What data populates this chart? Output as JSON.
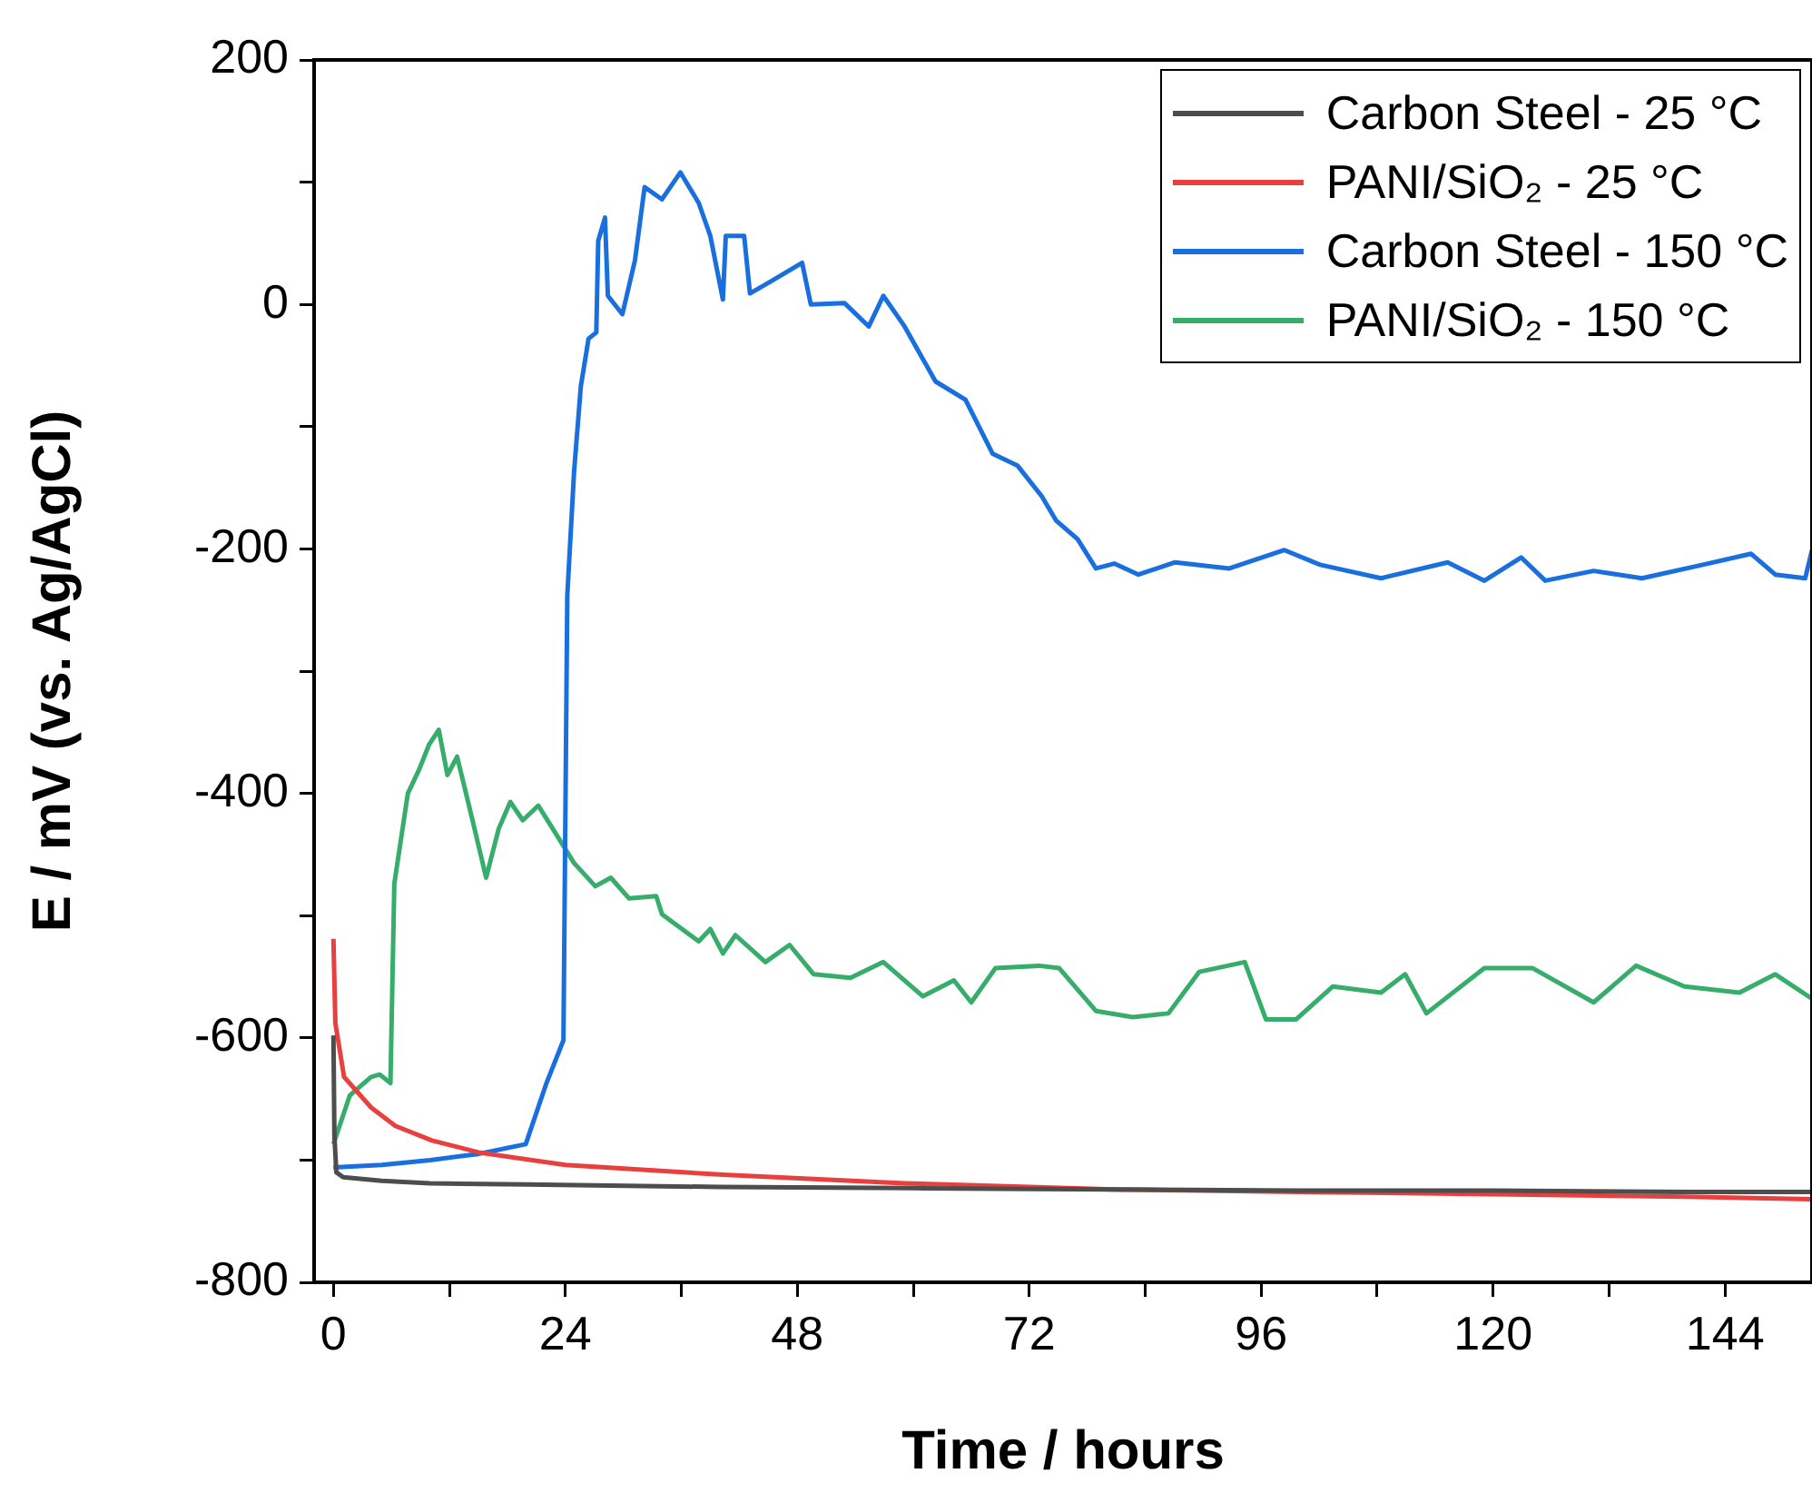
{
  "chart_data": {
    "type": "line",
    "xlabel": "Time / hours",
    "ylabel": "E / mV (vs. Ag/AgCl)",
    "xlim": [
      -2,
      153
    ],
    "ylim": [
      -800,
      200
    ],
    "xticks": [
      0,
      {
        "value": 12,
        "label": null
      },
      24,
      {
        "value": 36,
        "label": null
      },
      48,
      {
        "value": 60,
        "label": null
      },
      72,
      {
        "value": 84,
        "label": null
      },
      96,
      {
        "value": 108,
        "label": null
      },
      120,
      {
        "value": 132,
        "label": null
      },
      144
    ],
    "yticks": [
      -800,
      {
        "value": -700,
        "label": null
      },
      -600,
      {
        "value": -500,
        "label": null
      },
      -400,
      {
        "value": -300,
        "label": null
      },
      -200,
      {
        "value": -100,
        "label": null
      },
      0,
      {
        "value": 100,
        "label": null
      },
      200
    ],
    "grid": false,
    "legend": "top right",
    "marker": "none",
    "line_style": "solid",
    "series": [
      {
        "name": "Carbon Steel - 25 °C",
        "color": "#4d4d4d",
        "x": [
          0,
          0.1,
          0.3,
          1,
          5,
          10,
          20,
          40,
          60,
          80,
          100,
          120,
          140,
          153
        ],
        "values": [
          -598,
          -680,
          -710,
          -714,
          -717,
          -719,
          -720,
          -722,
          -723,
          -724,
          -725,
          -725,
          -726,
          -726
        ]
      },
      {
        "name": "PANI/SiO₂ - 25 °C",
        "color": "#e8403f",
        "x": [
          0,
          0.2,
          1.1,
          3.9,
          6.4,
          10.2,
          15.2,
          24,
          40.3,
          59.1,
          80.8,
          100,
          120,
          140,
          153
        ],
        "values": [
          -519,
          -588,
          -632,
          -657,
          -672,
          -684,
          -694,
          -704,
          -712,
          -719,
          -724,
          -726,
          -728,
          -730,
          -732
        ]
      },
      {
        "name": "Carbon Steel - 150 °C",
        "color": "#1a6fdf",
        "x": [
          0,
          5,
          10,
          15,
          19.9,
          22,
          23.8,
          24.2,
          24.9,
          25.6,
          26.4,
          27.2,
          27.4,
          28.1,
          28.4,
          29.9,
          31.2,
          32.2,
          34,
          35.9,
          37.8,
          39,
          40.3,
          40.6,
          42.5,
          43.1,
          45.3,
          48.5,
          49.4,
          52.9,
          55.4,
          56.9,
          59.1,
          62.3,
          65.4,
          68.2,
          70.8,
          73.3,
          74.8,
          77,
          78.9,
          80.8,
          83.3,
          87.1,
          92.7,
          98.4,
          102.1,
          108.4,
          115.3,
          119.1,
          122.9,
          125.4,
          130.4,
          135.4,
          141.7,
          146.7,
          149.2,
          152.3,
          153
        ],
        "values": [
          -706,
          -704,
          -700,
          -695,
          -687,
          -638,
          -602,
          -238,
          -137,
          -67,
          -28,
          -23,
          52,
          71,
          7,
          -8,
          36,
          96,
          86,
          108,
          83,
          56,
          4,
          56,
          56,
          9,
          19,
          34,
          0,
          1,
          -18,
          7,
          -18,
          -63,
          -78,
          -122,
          -132,
          -157,
          -177,
          -192,
          -216,
          -212,
          -221,
          -211,
          -216,
          -201,
          -213,
          -224,
          -211,
          -226,
          -207,
          -226,
          -218,
          -224,
          -213,
          -204,
          -221,
          -224,
          -201
        ]
      },
      {
        "name": "PANI/SiO₂ - 150 °C",
        "color": "#37ad6b",
        "x": [
          0,
          1.7,
          3.9,
          4.8,
          5.9,
          6.3,
          7.7,
          8.9,
          9.9,
          10.9,
          11.8,
          12.8,
          14.3,
          15.8,
          17.1,
          18.3,
          19.6,
          21.2,
          22.7,
          24.9,
          27.1,
          28.7,
          30.6,
          33.4,
          34,
          37.8,
          39,
          40.3,
          41.6,
          44.7,
          47.2,
          49.7,
          53.5,
          56.9,
          61,
          64.2,
          66,
          68.5,
          73,
          75.1,
          78.9,
          82.7,
          86.4,
          89.6,
          94.3,
          96.5,
          99.6,
          103.4,
          108.4,
          110.9,
          113.1,
          119.1,
          124.1,
          130.4,
          134.8,
          139.8,
          145.5,
          149.2,
          153
        ],
        "values": [
          -687,
          -647,
          -632,
          -630,
          -637,
          -474,
          -400,
          -380,
          -360,
          -348,
          -385,
          -370,
          -419,
          -469,
          -429,
          -407,
          -422,
          -410,
          -429,
          -457,
          -476,
          -469,
          -486,
          -484,
          -499,
          -521,
          -511,
          -531,
          -516,
          -538,
          -524,
          -548,
          -551,
          -538,
          -566,
          -553,
          -571,
          -543,
          -541,
          -543,
          -578,
          -583,
          -580,
          -546,
          -538,
          -585,
          -585,
          -558,
          -563,
          -548,
          -580,
          -543,
          -543,
          -571,
          -541,
          -558,
          -563,
          -548,
          -568
        ]
      }
    ]
  }
}
